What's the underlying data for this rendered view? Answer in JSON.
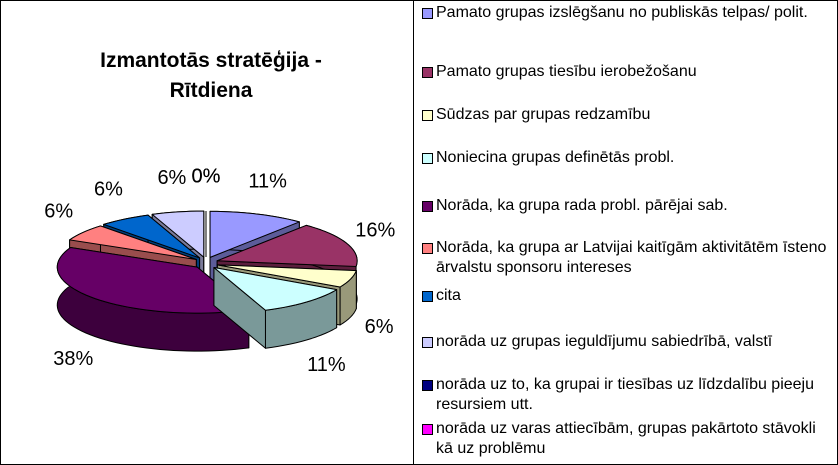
{
  "chart_data": {
    "type": "pie",
    "title": "Izmantotās stratēģija - Rītdiena",
    "categories": [
      "Pamato grupas izslēgšanu no publiskās telpas/ polit.",
      "Pamato grupas tiesību ierobežošanu",
      "Sūdzas par grupas redzamību",
      "Noniecina grupas definētās probl.",
      "Norāda, ka grupa rada probl. pārējai sab.",
      "Norāda, ka grupa ar Latvijai kaitīgām aktivitātēm īsteno ārvalstu sponsoru intereses",
      "cita",
      "norāda uz grupas ieguldījumu sabiedrībā, valstī",
      "norāda uz to, ka grupai ir tiesības uz līdzdalību pieeju resursiem utt.",
      "norāda uz varas attiecībām, grupas pakārtoto stāvokli kā uz problēmu"
    ],
    "values": [
      11,
      16,
      6,
      11,
      38,
      6,
      6,
      6,
      0,
      0
    ],
    "value_labels": [
      "11%",
      "16%",
      "6%",
      "11%",
      "38%",
      "6%",
      "6%",
      "6%",
      "0%",
      "0%"
    ],
    "colors": [
      "#9999ff",
      "#993366",
      "#ffffcc",
      "#ccffff",
      "#660066",
      "#ff8080",
      "#0066cc",
      "#ccccff",
      "#000080",
      "#ff00ff"
    ],
    "legend": "right"
  }
}
